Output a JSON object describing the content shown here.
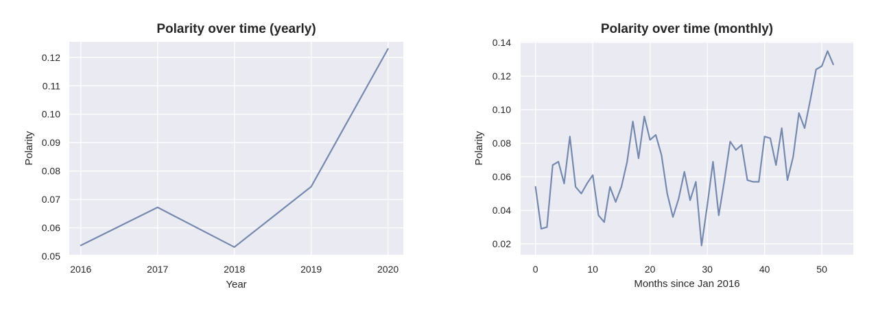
{
  "colors": {
    "panel_background": "#EAEAF2",
    "grid": "#FFFFFF",
    "line": "#7589AE",
    "text": "#262626"
  },
  "chart_data": [
    {
      "type": "line",
      "title": "Polarity over time (yearly)",
      "xlabel": "Year",
      "ylabel": "Polarity",
      "grid": true,
      "x": [
        2016,
        2017,
        2018,
        2019,
        2020
      ],
      "xticks": [
        2016,
        2017,
        2018,
        2019,
        2020
      ],
      "xtick_labels": [
        "2016",
        "2017",
        "2018",
        "2019",
        "2020"
      ],
      "yticks": [
        0.05,
        0.06,
        0.07,
        0.08,
        0.09,
        0.1,
        0.11,
        0.12
      ],
      "ytick_labels": [
        "0.05",
        "0.06",
        "0.07",
        "0.08",
        "0.09",
        "0.10",
        "0.11",
        "0.12"
      ],
      "xlim": [
        2015.85,
        2020.2
      ],
      "ylim": [
        0.0505,
        0.1255
      ],
      "series": [
        {
          "values": [
            0.0538,
            0.0672,
            0.0532,
            0.0745,
            0.123
          ]
        }
      ]
    },
    {
      "type": "line",
      "title": "Polarity over time (monthly)",
      "xlabel": "Months since Jan 2016",
      "ylabel": "Polarity",
      "grid": true,
      "x": [
        0,
        1,
        2,
        3,
        4,
        5,
        6,
        7,
        8,
        9,
        10,
        11,
        12,
        13,
        14,
        15,
        16,
        17,
        18,
        19,
        20,
        21,
        22,
        23,
        24,
        25,
        26,
        27,
        28,
        29,
        30,
        31,
        32,
        33,
        34,
        35,
        36,
        37,
        38,
        39,
        40,
        41,
        42,
        43,
        44,
        45,
        46,
        47,
        48,
        49,
        50,
        51,
        52
      ],
      "xticks": [
        0,
        10,
        20,
        30,
        40,
        50
      ],
      "xtick_labels": [
        "0",
        "10",
        "20",
        "30",
        "40",
        "50"
      ],
      "yticks": [
        0.02,
        0.04,
        0.06,
        0.08,
        0.1,
        0.12,
        0.14
      ],
      "ytick_labels": [
        "0.02",
        "0.04",
        "0.06",
        "0.08",
        "0.10",
        "0.12",
        "0.14"
      ],
      "xlim": [
        -2.6,
        55.5
      ],
      "ylim": [
        0.0135,
        0.1405
      ],
      "series": [
        {
          "values": [
            0.054,
            0.029,
            0.03,
            0.067,
            0.069,
            0.056,
            0.084,
            0.054,
            0.05,
            0.056,
            0.061,
            0.037,
            0.033,
            0.054,
            0.045,
            0.054,
            0.069,
            0.093,
            0.071,
            0.096,
            0.082,
            0.085,
            0.073,
            0.05,
            0.036,
            0.047,
            0.063,
            0.046,
            0.057,
            0.019,
            0.043,
            0.069,
            0.037,
            0.058,
            0.081,
            0.076,
            0.079,
            0.058,
            0.057,
            0.057,
            0.084,
            0.083,
            0.067,
            0.089,
            0.058,
            0.072,
            0.098,
            0.089,
            0.106,
            0.124,
            0.126,
            0.135,
            0.127
          ]
        }
      ]
    }
  ]
}
